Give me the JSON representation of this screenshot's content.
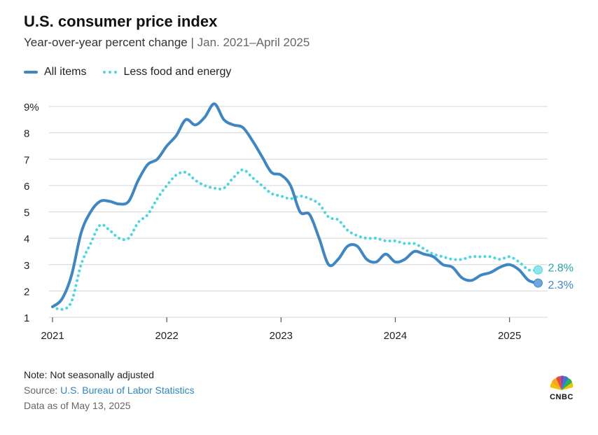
{
  "header": {
    "title": "U.S. consumer price index",
    "subtitle_main": "Year-over-year percent change",
    "subtitle_sep": "|",
    "subtitle_range": "Jan. 2021–April 2025"
  },
  "colors": {
    "all_items": "#3f86c4",
    "core": "#4dd6e0",
    "end_label_all": "#3f86c4",
    "end_label_core": "#2aa3a8",
    "grid": "#d6d6d6",
    "axis_text": "#222222"
  },
  "chart_data": {
    "type": "line",
    "title": "U.S. consumer price index",
    "subtitle": "Year-over-year percent change | Jan. 2021–April 2025",
    "xlabel": "",
    "ylabel": "",
    "x_start": 2021.0,
    "x_step": 0.0833333,
    "xlim": [
      2021,
      2025.333
    ],
    "ylim": [
      1,
      9
    ],
    "y_ticks": [
      1,
      2,
      3,
      4,
      5,
      6,
      7,
      8,
      9
    ],
    "y_tick_labels": [
      "1",
      "2",
      "3",
      "4",
      "5",
      "6",
      "7",
      "8",
      "9%"
    ],
    "x_ticks": [
      2021,
      2022,
      2023,
      2024,
      2025
    ],
    "x_tick_labels": [
      "2021",
      "2022",
      "2023",
      "2024",
      "2025"
    ],
    "grid": true,
    "legend_position": "top-left",
    "series": [
      {
        "name": "All items",
        "style": "solid",
        "end_label": "2.3%",
        "values": [
          1.4,
          1.7,
          2.6,
          4.2,
          5.0,
          5.4,
          5.4,
          5.3,
          5.4,
          6.2,
          6.8,
          7.0,
          7.5,
          7.9,
          8.5,
          8.3,
          8.6,
          9.1,
          8.5,
          8.3,
          8.2,
          7.7,
          7.1,
          6.5,
          6.4,
          6.0,
          5.0,
          4.9,
          4.0,
          3.0,
          3.2,
          3.7,
          3.7,
          3.2,
          3.1,
          3.4,
          3.1,
          3.2,
          3.5,
          3.4,
          3.3,
          3.0,
          2.9,
          2.5,
          2.4,
          2.6,
          2.7,
          2.9,
          3.0,
          2.8,
          2.4,
          2.3
        ]
      },
      {
        "name": "Less food and energy",
        "style": "dotted",
        "end_label": "2.8%",
        "values": [
          1.4,
          1.3,
          1.6,
          3.0,
          3.8,
          4.5,
          4.3,
          4.0,
          4.0,
          4.6,
          4.9,
          5.5,
          6.0,
          6.4,
          6.5,
          6.2,
          6.0,
          5.9,
          5.9,
          6.3,
          6.6,
          6.3,
          6.0,
          5.7,
          5.6,
          5.5,
          5.6,
          5.5,
          5.3,
          4.8,
          4.7,
          4.3,
          4.1,
          4.0,
          4.0,
          3.9,
          3.9,
          3.8,
          3.8,
          3.6,
          3.4,
          3.3,
          3.2,
          3.2,
          3.3,
          3.3,
          3.3,
          3.2,
          3.3,
          3.1,
          2.8,
          2.8
        ]
      }
    ]
  },
  "footer": {
    "note": "Note: Not seasonally adjusted",
    "source_prefix": "Source: ",
    "source_name": "U.S. Bureau of Labor Statistics",
    "as_of": "Data as of May 13, 2025"
  },
  "logo": {
    "text": "CNBC"
  }
}
